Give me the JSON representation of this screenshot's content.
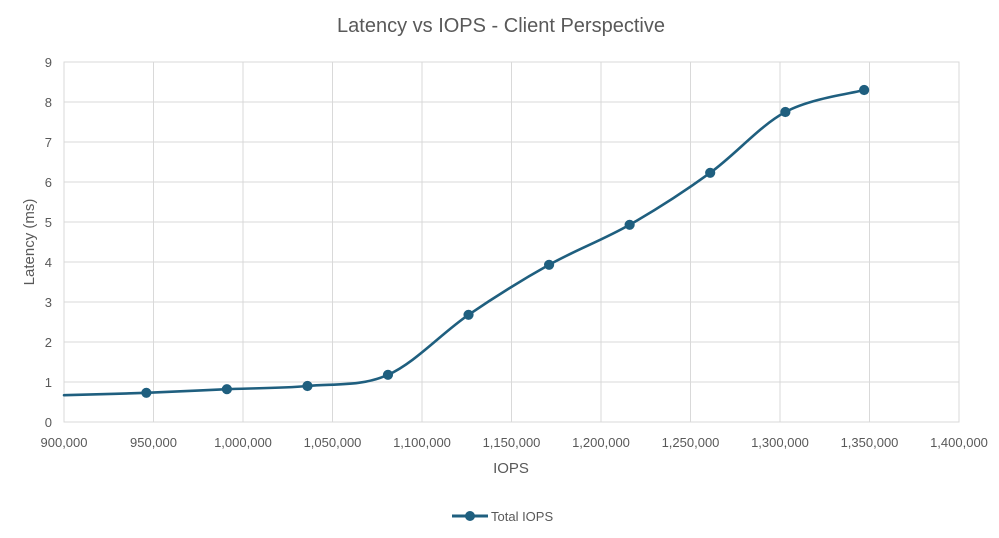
{
  "chart_data": {
    "type": "line",
    "title": "Latency vs IOPS - Client Perspective",
    "xlabel": "IOPS",
    "ylabel": "Latency (ms)",
    "xlim": [
      900000,
      1400000
    ],
    "ylim": [
      0,
      9
    ],
    "x_ticks": [
      900000,
      950000,
      1000000,
      1050000,
      1100000,
      1150000,
      1200000,
      1250000,
      1300000,
      1350000,
      1400000
    ],
    "x_tick_labels": [
      "900,000",
      "950,000",
      "1,000,000",
      "1,050,000",
      "1,100,000",
      "1,150,000",
      "1,200,000",
      "1,250,000",
      "1,300,000",
      "1,350,000",
      "1,400,000"
    ],
    "y_ticks": [
      0,
      1,
      2,
      3,
      4,
      5,
      6,
      7,
      8,
      9
    ],
    "y_tick_labels": [
      "0",
      "1",
      "2",
      "3",
      "4",
      "5",
      "6",
      "7",
      "8",
      "9"
    ],
    "grid": true,
    "smooth": true,
    "legend_position": "bottom",
    "series": [
      {
        "name": "Total IOPS",
        "color": "#1f5f7f",
        "x": [
          900000,
          946000,
          991000,
          1036000,
          1081000,
          1126000,
          1171000,
          1216000,
          1261000,
          1303000,
          1347000
        ],
        "y": [
          0.67,
          0.73,
          0.82,
          0.9,
          1.18,
          2.68,
          3.93,
          4.93,
          6.23,
          7.75,
          8.3
        ],
        "markers": [
          false,
          true,
          true,
          true,
          true,
          true,
          true,
          true,
          true,
          true,
          true
        ]
      }
    ]
  }
}
